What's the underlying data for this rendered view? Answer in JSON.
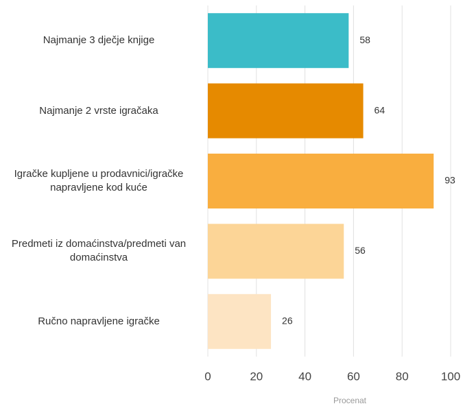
{
  "chart_data": {
    "type": "hbar",
    "categories": [
      "Najmanje 3 dječje knjige",
      "Najmanje 2 vrste igračaka",
      "Igračke kupljene u prodavnici/igračke napravljene kod kuće",
      "Predmeti iz domaćinstva/predmeti van domaćinstva",
      "Ručno napravljene igračke"
    ],
    "values": [
      58,
      64,
      93,
      56,
      26
    ],
    "colors": [
      "#3bbcc8",
      "#e68a00",
      "#f9ae3f",
      "#fcd597",
      "#fde4c3"
    ],
    "xlim": [
      0,
      100
    ],
    "xticks": [
      0,
      20,
      40,
      60,
      80,
      100
    ],
    "x_label": "Procenat",
    "grid": true
  }
}
